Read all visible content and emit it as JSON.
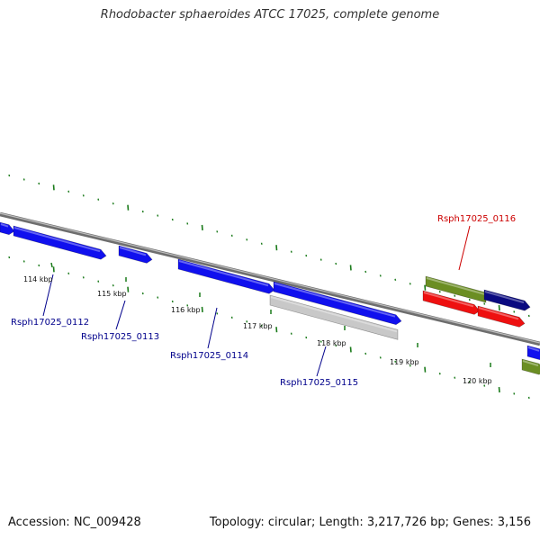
{
  "title": "Rhodobacter sphaeroides ATCC 17025, complete genome",
  "footer": {
    "accession": "Accession: NC_009428",
    "summary": "Topology: circular; Length: 3,217,726 bp; Genes: 3,156"
  },
  "colors": {
    "backbone": "#8a8a8a",
    "gene_blue": "#1010ee",
    "gene_dark_blue": "#0a0a80",
    "gene_red": "#ee1010",
    "gene_green": "#6b8e23",
    "gene_gray": "#c8c8c8",
    "tick_green": "#1a7a1a",
    "label_blue": "#00008b",
    "label_red": "#cc0000"
  },
  "scale": {
    "ticks": [
      "114 kbp",
      "115 kbp",
      "116 kbp",
      "117 kbp",
      "118 kbp",
      "119 kbp",
      "120 kbp"
    ]
  },
  "genes": [
    {
      "id": "g1",
      "color": "blue",
      "strand": "forward"
    },
    {
      "id": "g2",
      "color": "blue",
      "strand": "forward",
      "label": "Rsph17025_0112"
    },
    {
      "id": "g3",
      "color": "blue",
      "strand": "forward",
      "label": "Rsph17025_0113"
    },
    {
      "id": "g4",
      "color": "blue",
      "strand": "forward",
      "label": "Rsph17025_0114"
    },
    {
      "id": "g5",
      "color": "blue",
      "strand": "forward"
    },
    {
      "id": "g6",
      "color": "gray",
      "strand": "forward",
      "label": "Rsph17025_0115"
    },
    {
      "id": "g7",
      "color": "green",
      "strand": "forward",
      "label": "Rsph17025_0116"
    },
    {
      "id": "g8",
      "color": "dark_blue",
      "strand": "forward"
    },
    {
      "id": "g9",
      "color": "red",
      "strand": "forward"
    },
    {
      "id": "g10",
      "color": "red",
      "strand": "forward"
    },
    {
      "id": "g11",
      "color": "blue",
      "strand": "forward"
    },
    {
      "id": "g12",
      "color": "green",
      "strand": "forward"
    }
  ]
}
